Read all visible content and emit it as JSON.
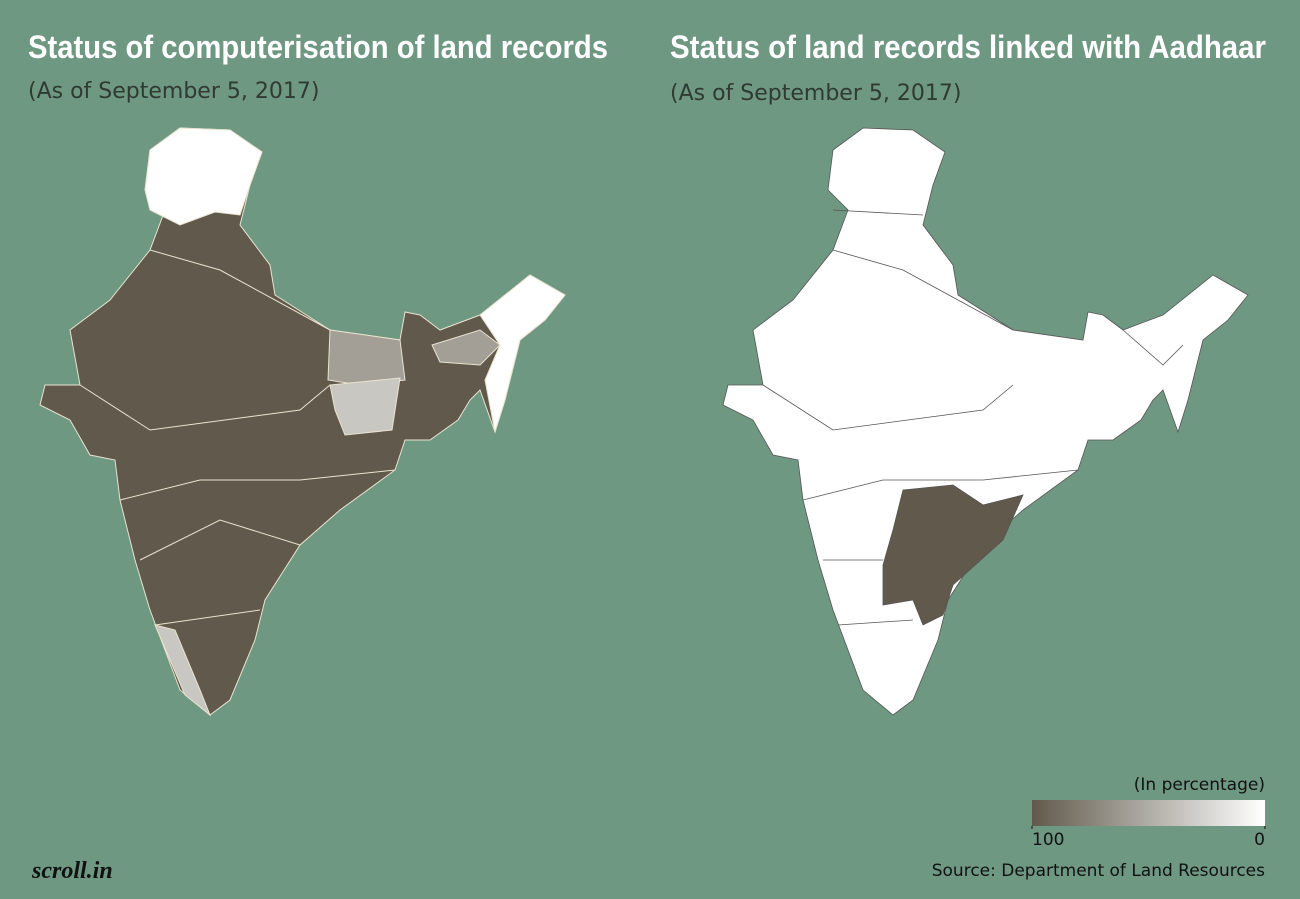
{
  "maps": [
    {
      "title": "Status of computerisation of land records",
      "subtitle": "(As of September 5, 2017)"
    },
    {
      "title": "Status of land records linked with Aadhaar",
      "subtitle": "(As of September 5, 2017)"
    }
  ],
  "legend": {
    "label": "(In percentage)",
    "range": [
      100,
      0
    ],
    "ticks": [
      100,
      0
    ],
    "colors": [
      "#615a4c",
      "#ffffff"
    ]
  },
  "source": "Source: Department of Land Resources",
  "logo": "scroll.in"
}
